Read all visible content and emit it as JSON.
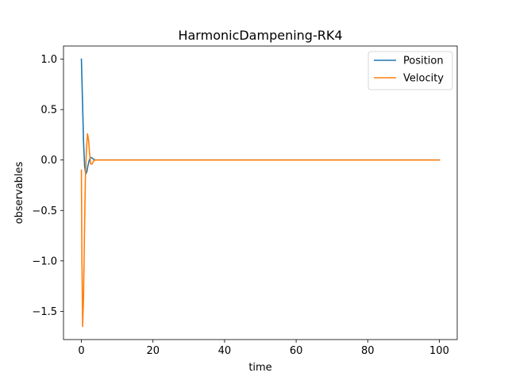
{
  "chart_data": {
    "type": "line",
    "title": "HarmonicDampening-RK4",
    "xlabel": "time",
    "ylabel": "observables",
    "xlim": [
      -5,
      105
    ],
    "ylim": [
      -1.78,
      1.13
    ],
    "xticks": [
      0,
      20,
      40,
      60,
      80,
      100
    ],
    "xtick_labels": [
      "0",
      "20",
      "40",
      "60",
      "80",
      "100"
    ],
    "yticks": [
      1.0,
      0.5,
      0.0,
      -0.5,
      -1.0,
      -1.5
    ],
    "ytick_labels": [
      "1.0",
      "0.5",
      "0.0",
      "−0.5",
      "−1.0",
      "−1.5"
    ],
    "grid": false,
    "legend_position": "top-right",
    "series": [
      {
        "name": "Position",
        "color": "#1f77b4",
        "x": [
          0,
          0.3,
          0.6,
          0.9,
          1.2,
          1.5,
          1.8,
          2.2,
          2.6,
          3.0,
          3.5,
          4.0,
          5,
          10,
          20,
          50,
          100
        ],
        "y": [
          1.0,
          0.6,
          0.18,
          -0.06,
          -0.14,
          -0.12,
          -0.06,
          0.0,
          0.025,
          0.02,
          0.005,
          0.0,
          0.0,
          0.0,
          0.0,
          0.0,
          0.0
        ]
      },
      {
        "name": "Velocity",
        "color": "#ff7f0e",
        "x": [
          0,
          0.15,
          0.35,
          0.6,
          0.85,
          1.1,
          1.4,
          1.7,
          2.0,
          2.3,
          2.6,
          3.0,
          3.4,
          3.8,
          4.5,
          5,
          10,
          20,
          50,
          100
        ],
        "y": [
          -0.1,
          -1.0,
          -1.65,
          -1.35,
          -0.75,
          -0.2,
          0.1,
          0.26,
          0.2,
          0.06,
          -0.04,
          -0.04,
          -0.01,
          0.0,
          0.0,
          0.0,
          0.0,
          0.0,
          0.0,
          0.0
        ]
      }
    ]
  }
}
